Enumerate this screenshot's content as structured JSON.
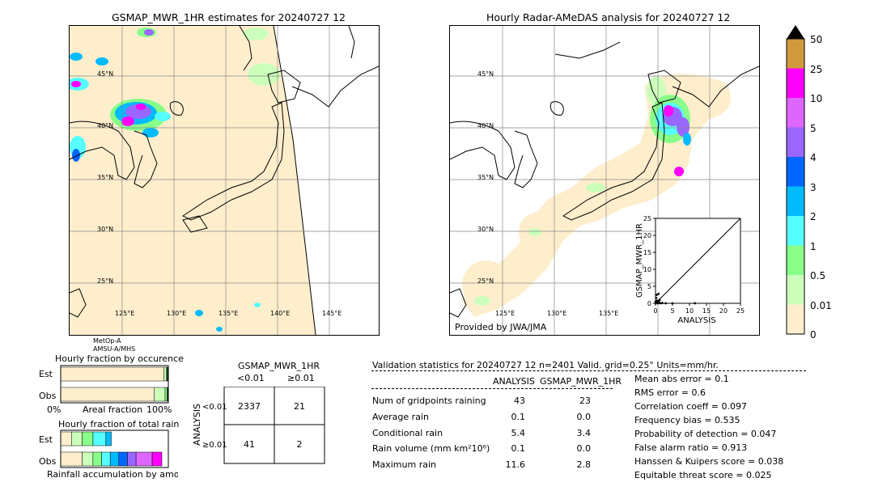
{
  "left_map": {
    "title": "GSMAP_MWR_1HR estimates for 20240727 12",
    "lat_labels": [
      "45°N",
      "40°N",
      "35°N",
      "30°N",
      "25°N"
    ],
    "lon_labels": [
      "125°E",
      "130°E",
      "135°E",
      "140°E",
      "145°E"
    ],
    "sensor_lines": [
      "MetOp-A",
      "AMSU-A/MHS"
    ]
  },
  "right_map": {
    "title": "Hourly Radar-AMeDAS analysis for 20240727 12",
    "lat_labels": [
      "45°N",
      "40°N",
      "35°N",
      "30°N",
      "25°N"
    ],
    "lon_labels": [
      "125°E",
      "130°E",
      "135°E"
    ],
    "credit": "Provided by JWA/JMA"
  },
  "colorbar": {
    "labels": [
      "50",
      "25",
      "10",
      "5",
      "4",
      "3",
      "2",
      "1",
      "0.5",
      "0.01",
      "0"
    ],
    "colors": [
      "#d09a3c",
      "#ff00ff",
      "#dd66ff",
      "#9966ff",
      "#0066ff",
      "#00bbff",
      "#55ffff",
      "#88ff88",
      "#ccffbb",
      "#ffeecc"
    ]
  },
  "chart_data": [
    {
      "type": "scatter",
      "title": "",
      "xlabel": "ANALYSIS",
      "ylabel": "GSMAP_MWR_1HR",
      "xlim": [
        0,
        25
      ],
      "ylim": [
        0,
        25
      ],
      "x_ticks": [
        "0",
        "5",
        "10",
        "15",
        "20",
        "25"
      ],
      "y_ticks": [
        "0",
        "5",
        "10",
        "15",
        "20",
        "25"
      ],
      "points": [
        [
          0.1,
          0.0
        ],
        [
          0.3,
          0.2
        ],
        [
          0.5,
          0.8
        ],
        [
          1.0,
          0.4
        ],
        [
          1.5,
          0.0
        ],
        [
          0.2,
          1.6
        ],
        [
          2.0,
          0.1
        ],
        [
          0.8,
          0.0
        ],
        [
          1.2,
          1.0
        ],
        [
          3.0,
          0.0
        ],
        [
          0.4,
          2.5
        ],
        [
          0.0,
          0.5
        ],
        [
          5.0,
          0.0
        ],
        [
          0.6,
          0.3
        ],
        [
          11.6,
          0.0
        ],
        [
          0.9,
          2.8
        ]
      ]
    },
    {
      "type": "bar",
      "title": "Hourly fraction by occurence",
      "categories": [
        "Est",
        "Obs"
      ],
      "xlabel": "Areal fraction",
      "x_ticks": [
        "0%",
        "100%"
      ],
      "series": [
        {
          "values": [
            0.96,
            0.87
          ],
          "color": "#ffeecc"
        },
        {
          "values": [
            0.02,
            0.1
          ],
          "color": "#ccffbb"
        },
        {
          "values": [
            0.01,
            0.02
          ],
          "color": "#88ff88"
        },
        {
          "values": [
            0.01,
            0.01
          ],
          "color": "#000000"
        }
      ]
    },
    {
      "type": "bar",
      "title": "Hourly fraction of total rain",
      "categories": [
        "Est",
        "Obs"
      ],
      "xlabel": "Rainfall accumulation by amount",
      "series": [
        {
          "values": [
            0.1,
            0.2
          ],
          "color": "#ffeecc"
        },
        {
          "values": [
            0.1,
            0.1
          ],
          "color": "#ccffbb"
        },
        {
          "values": [
            0.1,
            0.08
          ],
          "color": "#88ff88"
        },
        {
          "values": [
            0.12,
            0.08
          ],
          "color": "#55ffff"
        },
        {
          "values": [
            0.05,
            0.08
          ],
          "color": "#00bbff"
        },
        {
          "values": [
            0.0,
            0.08
          ],
          "color": "#0066ff"
        },
        {
          "values": [
            0.0,
            0.08
          ],
          "color": "#9966ff"
        },
        {
          "values": [
            0.0,
            0.15
          ],
          "color": "#dd66ff"
        },
        {
          "values": [
            0.0,
            0.09
          ],
          "color": "#ff00ff"
        }
      ]
    }
  ],
  "contingency": {
    "title": "GSMAP_MWR_1HR",
    "col_headers": [
      "<0.01",
      "≥0.01"
    ],
    "row_axis_label": "ANALYSIS",
    "row_headers": [
      "<0.01",
      "≥0.01"
    ],
    "cells": [
      [
        "2337",
        "21"
      ],
      [
        "41",
        "2"
      ]
    ]
  },
  "validation": {
    "header": "Validation statistics for 20240727 12  n=2401 Valid. grid=0.25° Units=mm/hr.",
    "col_analysis": "ANALYSIS",
    "col_gsmap": "GSMAP_MWR_1HR",
    "rows": [
      {
        "label": "Num of gridpoints raining",
        "analysis": "43",
        "gsmap": "23"
      },
      {
        "label": "Average rain",
        "analysis": "0.1",
        "gsmap": "0.0"
      },
      {
        "label": "Conditional rain",
        "analysis": "5.4",
        "gsmap": "3.4"
      },
      {
        "label": "Rain volume (mm km²10⁶)",
        "analysis": "0.1",
        "gsmap": "0.0"
      },
      {
        "label": "Maximum rain",
        "analysis": "11.6",
        "gsmap": "2.8"
      }
    ],
    "scores": [
      "Mean abs error =    0.1",
      "RMS error =    0.6",
      "Correlation coeff =  0.097",
      "Frequency bias =  0.535",
      "Probability of detection =  0.047",
      "False alarm ratio =  0.913",
      "Hanssen & Kuipers score =  0.038",
      "Equitable threat score =  0.025"
    ]
  }
}
